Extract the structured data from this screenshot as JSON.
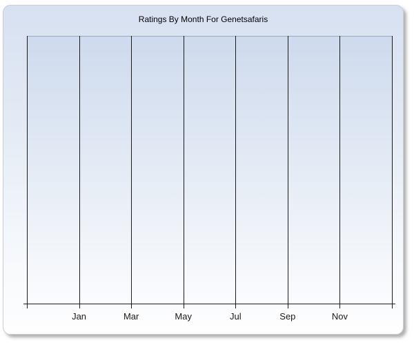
{
  "chart": {
    "title": "Ratings By Month For Genetsafaris",
    "x_tick_labels": [
      "Jan",
      "Mar",
      "May",
      "Jul",
      "Sep",
      "Nov"
    ],
    "colors": {
      "panel_gradient_top": "#d7e1f1",
      "panel_gradient_bottom": "#fefefe",
      "plot_gradient_top": "#cedaed",
      "plot_gradient_bottom": "#fbfcfe",
      "gridline": "#1a1a1a",
      "plot_top_border": "#9ba6bc",
      "panel_border": "#c9cdd6",
      "title_text": "#000000",
      "axis_label_text": "#1a1a1a"
    }
  },
  "chart_data": {
    "type": "bar",
    "title": "Ratings By Month For Genetsafaris",
    "categories": [
      "Jan",
      "Mar",
      "May",
      "Jul",
      "Sep",
      "Nov"
    ],
    "values": [],
    "series": [],
    "xlabel": "",
    "ylabel": "",
    "legend": "none",
    "grid": "vertical-only",
    "notes": "Empty plot: no data points, bars, or y-axis tick labels are rendered; only vertical gridlines at every second month with tick marks below the x-axis."
  }
}
